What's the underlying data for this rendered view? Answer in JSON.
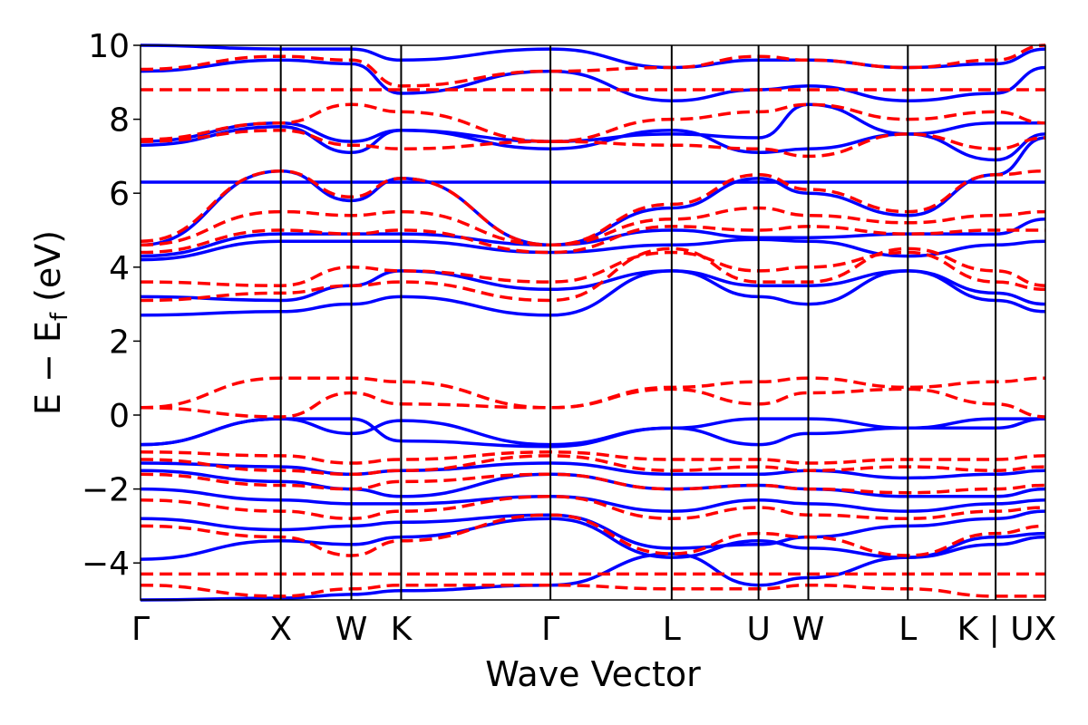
{
  "chart_data": {
    "type": "line",
    "title": "",
    "xlabel": "Wave Vector",
    "ylabel": "E − E",
    "ylabel_subscript": "f",
    "ylabel_unit": "(eV)",
    "ylim": [
      -5,
      10
    ],
    "xlim": [
      0,
      1
    ],
    "yticks": [
      -4,
      -2,
      0,
      2,
      4,
      6,
      8,
      10
    ],
    "ytick_labels": [
      "−4",
      "−2",
      "0",
      "2",
      "4",
      "6",
      "8",
      "10"
    ],
    "high_symmetry_points": [
      {
        "label": "Γ",
        "x": 0.0
      },
      {
        "label": "X",
        "x": 0.155
      },
      {
        "label": "W",
        "x": 0.233
      },
      {
        "label": "K",
        "x": 0.288
      },
      {
        "label": "Γ",
        "x": 0.453
      },
      {
        "label": "L",
        "x": 0.587
      },
      {
        "label": "U",
        "x": 0.683
      },
      {
        "label": "W",
        "x": 0.738
      },
      {
        "label": "L",
        "x": 0.848
      },
      {
        "label": "K | U",
        "x": 0.945
      },
      {
        "label": "X",
        "x": 1.0
      }
    ],
    "legend": "none",
    "grid": false,
    "series": [
      {
        "color": "#0000ff",
        "style": "solid",
        "x": [
          0.0,
          0.155,
          0.233,
          0.288,
          0.453,
          0.587,
          0.683,
          0.738,
          0.848,
          0.945,
          1.0
        ],
        "bands": [
          [
            -5.0,
            -4.95,
            -4.85,
            -4.75,
            -4.6,
            -3.75,
            -4.6,
            -4.4,
            -3.85,
            -3.3,
            -3.2
          ],
          [
            -3.9,
            -3.4,
            -3.5,
            -3.3,
            -2.8,
            -3.85,
            -3.4,
            -3.6,
            -3.85,
            -3.5,
            -3.3
          ],
          [
            -2.8,
            -3.1,
            -3.0,
            -2.9,
            -2.7,
            -3.6,
            -3.5,
            -3.3,
            -3.0,
            -2.8,
            -2.6
          ],
          [
            -2.0,
            -2.3,
            -2.4,
            -2.4,
            -2.2,
            -2.6,
            -2.3,
            -2.4,
            -2.6,
            -2.4,
            -2.3
          ],
          [
            -1.5,
            -1.8,
            -2.0,
            -2.2,
            -1.6,
            -2.0,
            -1.9,
            -2.0,
            -2.2,
            -2.2,
            -2.0
          ],
          [
            -1.3,
            -1.4,
            -1.6,
            -1.5,
            -1.3,
            -1.6,
            -1.6,
            -1.5,
            -1.7,
            -1.6,
            -1.5
          ],
          [
            -0.8,
            -0.1,
            -0.5,
            -0.15,
            -0.8,
            -0.35,
            -0.8,
            -0.5,
            -0.35,
            -0.1,
            -0.1
          ],
          [
            -0.8,
            -0.1,
            -0.1,
            -0.7,
            -0.85,
            -0.35,
            -0.1,
            -0.1,
            -0.35,
            -0.35,
            -0.1
          ],
          [
            2.7,
            2.8,
            3.0,
            3.2,
            2.7,
            3.9,
            3.2,
            3.0,
            3.9,
            3.1,
            2.8
          ],
          [
            3.2,
            3.1,
            3.5,
            3.9,
            3.4,
            3.9,
            3.5,
            3.5,
            3.9,
            3.3,
            3.0
          ],
          [
            4.2,
            4.7,
            4.7,
            4.7,
            4.4,
            4.6,
            4.75,
            4.7,
            4.3,
            4.6,
            4.7
          ],
          [
            4.3,
            4.9,
            4.9,
            4.9,
            4.6,
            5.0,
            4.8,
            4.8,
            4.9,
            4.9,
            5.3
          ],
          [
            6.3,
            6.3,
            6.3,
            6.3,
            6.3,
            6.3,
            6.3,
            6.3,
            6.3,
            6.3,
            6.3
          ],
          [
            4.6,
            6.6,
            5.8,
            6.4,
            4.6,
            5.6,
            6.4,
            6.0,
            5.4,
            6.5,
            7.5
          ],
          [
            7.3,
            7.8,
            7.1,
            7.7,
            7.2,
            7.7,
            7.1,
            7.2,
            7.6,
            6.9,
            7.6
          ],
          [
            7.4,
            7.9,
            7.4,
            7.7,
            7.4,
            7.6,
            7.5,
            8.4,
            7.6,
            7.9,
            7.9
          ],
          [
            9.3,
            9.6,
            9.5,
            8.7,
            9.3,
            8.5,
            8.8,
            8.9,
            8.5,
            8.7,
            9.4
          ],
          [
            10.0,
            9.9,
            9.9,
            9.6,
            9.9,
            9.4,
            9.6,
            9.6,
            9.4,
            9.5,
            9.9
          ]
        ]
      },
      {
        "color": "#ff0000",
        "style": "dashed",
        "x": [
          0.0,
          0.155,
          0.233,
          0.288,
          0.453,
          0.587,
          0.683,
          0.738,
          0.848,
          0.945,
          1.0
        ],
        "bands": [
          [
            -4.6,
            -4.9,
            -4.7,
            -4.6,
            -4.6,
            -4.7,
            -4.7,
            -4.6,
            -4.7,
            -4.9,
            -4.9
          ],
          [
            -4.3,
            -4.3,
            -4.3,
            -4.3,
            -4.3,
            -4.3,
            -4.3,
            -4.3,
            -4.3,
            -4.3,
            -4.3
          ],
          [
            -3.0,
            -3.3,
            -3.8,
            -3.4,
            -2.7,
            -3.75,
            -3.2,
            -3.3,
            -3.8,
            -3.2,
            -3.0
          ],
          [
            -2.3,
            -2.6,
            -2.8,
            -2.6,
            -2.2,
            -2.8,
            -2.5,
            -2.7,
            -2.8,
            -2.6,
            -2.5
          ],
          [
            -1.6,
            -1.9,
            -2.0,
            -1.8,
            -1.6,
            -2.0,
            -1.9,
            -2.0,
            -2.1,
            -2.0,
            -1.9
          ],
          [
            -1.2,
            -1.5,
            -1.6,
            -1.5,
            -1.1,
            -1.5,
            -1.4,
            -1.5,
            -1.4,
            -1.5,
            -1.4
          ],
          [
            -1.0,
            -1.1,
            -1.3,
            -1.2,
            -1.0,
            -1.2,
            -1.2,
            -1.3,
            -1.2,
            -1.2,
            -1.1
          ],
          [
            0.2,
            1.0,
            1.0,
            0.9,
            0.2,
            0.75,
            0.9,
            1.0,
            0.75,
            0.9,
            1.0
          ],
          [
            0.2,
            -0.05,
            0.6,
            0.3,
            0.2,
            0.7,
            0.3,
            0.6,
            0.7,
            0.3,
            -0.05
          ],
          [
            3.1,
            3.3,
            3.5,
            3.6,
            3.1,
            4.5,
            3.6,
            3.6,
            4.5,
            3.9,
            3.5
          ],
          [
            3.6,
            3.5,
            4.0,
            3.9,
            3.6,
            4.4,
            3.9,
            4.0,
            4.4,
            3.6,
            3.4
          ],
          [
            4.4,
            5.0,
            4.9,
            5.0,
            4.4,
            5.1,
            5.0,
            5.1,
            4.9,
            5.0,
            5.0
          ],
          [
            4.6,
            5.5,
            5.4,
            5.5,
            4.6,
            5.3,
            5.6,
            5.4,
            5.2,
            5.4,
            5.5
          ],
          [
            4.7,
            6.6,
            5.9,
            6.4,
            4.6,
            5.7,
            6.5,
            6.1,
            5.5,
            6.5,
            6.6
          ],
          [
            7.4,
            7.7,
            7.3,
            7.2,
            7.4,
            7.3,
            7.2,
            7.0,
            7.6,
            7.2,
            7.5
          ],
          [
            7.45,
            7.9,
            8.4,
            8.2,
            7.4,
            8.0,
            8.2,
            8.4,
            8.0,
            8.2,
            7.9
          ],
          [
            8.8,
            8.8,
            8.8,
            8.8,
            8.8,
            8.8,
            8.8,
            8.8,
            8.8,
            8.8,
            8.8
          ],
          [
            9.35,
            9.7,
            9.6,
            8.9,
            9.3,
            9.4,
            9.7,
            9.6,
            9.4,
            9.6,
            10.0
          ]
        ]
      }
    ]
  }
}
